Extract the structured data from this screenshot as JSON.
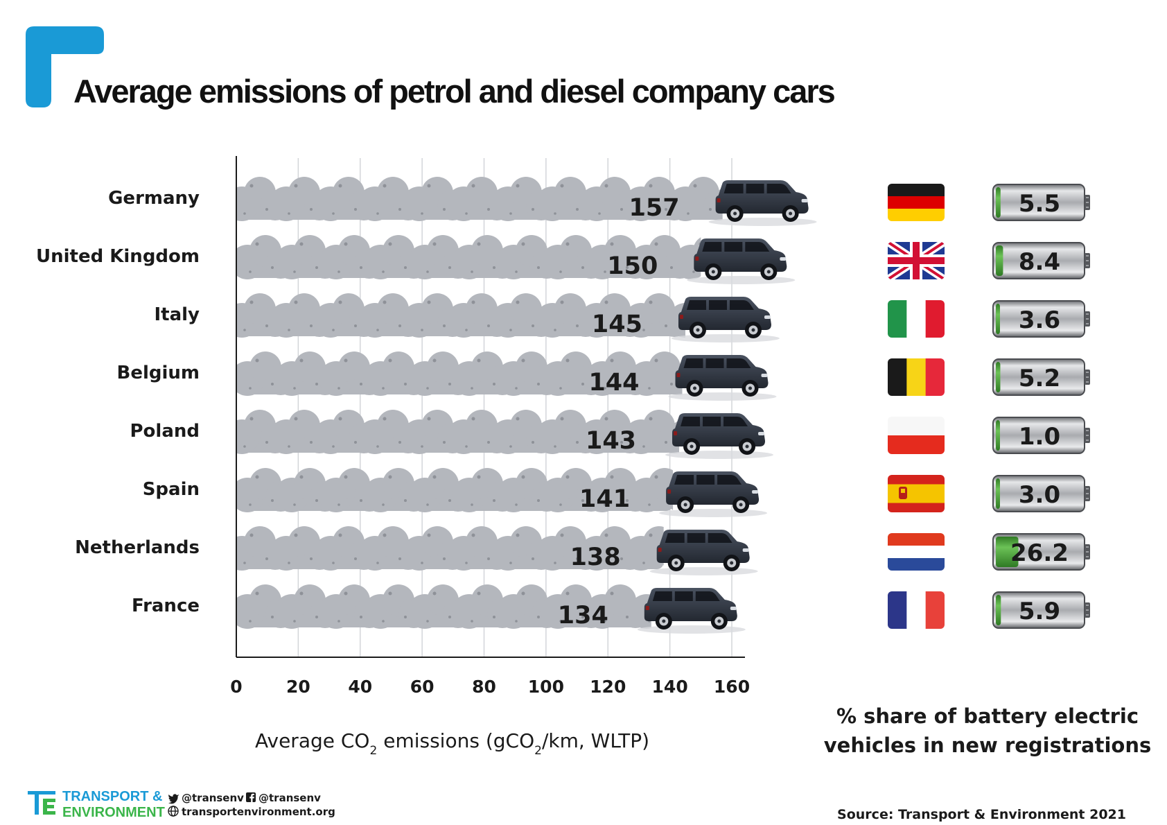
{
  "chart_data": {
    "type": "bar",
    "title": "Average emissions of petrol and diesel company cars",
    "xlabel_parts": [
      "Average CO",
      "2",
      " emissions (gCO",
      "2",
      "/km, WLTP)"
    ],
    "xlim": [
      0,
      160
    ],
    "xticks": [
      "0",
      "20",
      "40",
      "60",
      "80",
      "100",
      "120",
      "140",
      "160"
    ],
    "grid": true,
    "categories": [
      "Germany",
      "United Kingdom",
      "Italy",
      "Belgium",
      "Poland",
      "Spain",
      "Netherlands",
      "France"
    ],
    "series": [
      {
        "name": "Average CO2 emissions (gCO2/km, WLTP)",
        "values": [
          157,
          150,
          145,
          144,
          143,
          141,
          138,
          134
        ]
      },
      {
        "name": "% share of battery electric vehicles in new registrations",
        "values": [
          5.5,
          8.4,
          3.6,
          5.2,
          1.0,
          3.0,
          26.2,
          5.9
        ],
        "labels": [
          "5.5",
          "8.4",
          "3.6",
          "5.2",
          "1.0",
          "3.0",
          "26.2",
          "5.9"
        ]
      }
    ],
    "bev_note": [
      "% share of battery electric",
      "vehicles in new registrations"
    ]
  },
  "flags": [
    {
      "country": "Germany",
      "layout": "h",
      "colors": [
        "#1a1a1a",
        "#dd0000",
        "#ffce00"
      ]
    },
    {
      "country": "United Kingdom",
      "layout": "uk",
      "colors": [
        "#1f3a93",
        "#ffffff",
        "#d21034"
      ]
    },
    {
      "country": "Italy",
      "layout": "v",
      "colors": [
        "#21944a",
        "#ffffff",
        "#e01b2f"
      ]
    },
    {
      "country": "Belgium",
      "layout": "v",
      "colors": [
        "#1a1a1a",
        "#f7d417",
        "#e6283a"
      ]
    },
    {
      "country": "Poland",
      "layout": "h",
      "colors": [
        "#f7f7f7",
        "#e52b1e"
      ]
    },
    {
      "country": "Spain",
      "layout": "es",
      "colors": [
        "#d4231c",
        "#f5c400",
        "#d4231c"
      ]
    },
    {
      "country": "Netherlands",
      "layout": "h",
      "colors": [
        "#e03a1e",
        "#ffffff",
        "#2a4a9a"
      ]
    },
    {
      "country": "France",
      "layout": "v",
      "colors": [
        "#2c3689",
        "#ffffff",
        "#e8413a"
      ]
    }
  ],
  "colors": {
    "smoke": "#b4b7bd",
    "smoke_dark": "#8e9198",
    "car_body": "#2f3540",
    "battery_fill": "#49a53a",
    "accent_blue": "#1a9ad6",
    "logo_green": "#3bb54a"
  },
  "footer": {
    "brand_line1": "TRANSPORT &",
    "brand_line2": "ENVIRONMENT",
    "twitter": "@transenv",
    "facebook": "@transenv",
    "website": "transportenvironment.org",
    "source": "Source: Transport & Environment 2021"
  }
}
